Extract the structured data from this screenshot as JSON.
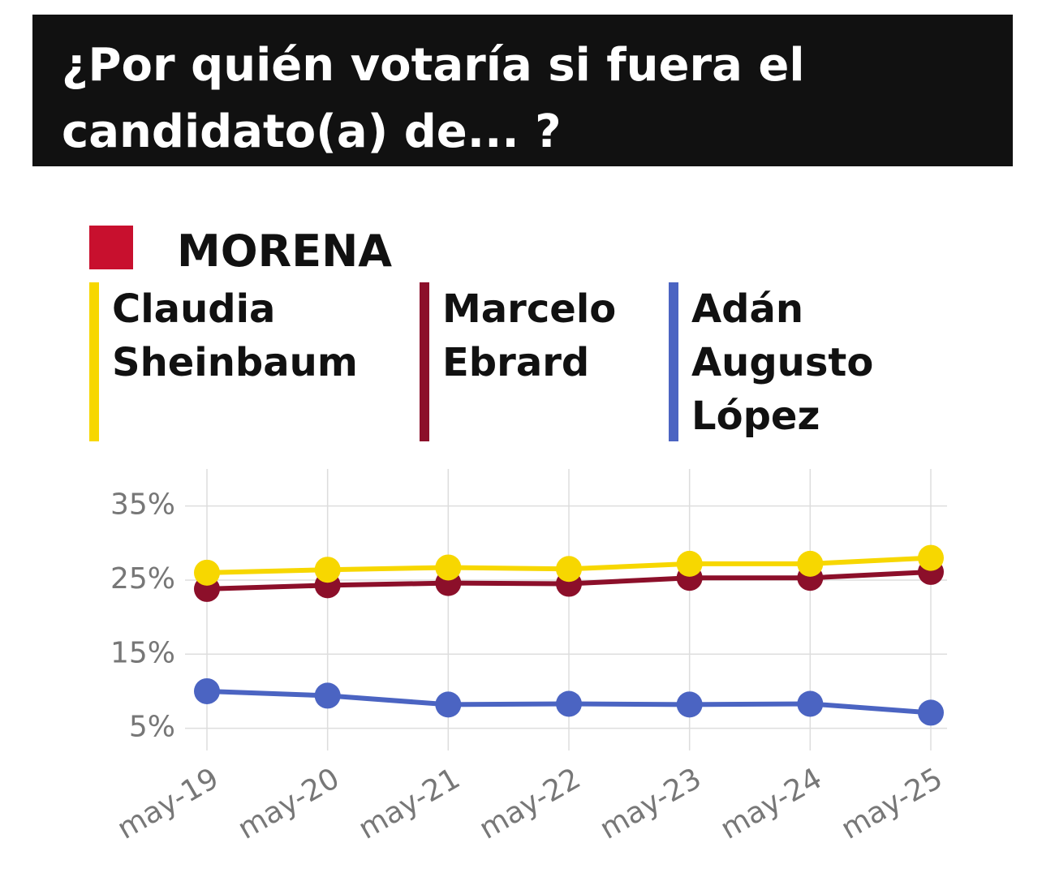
{
  "chart_data": {
    "type": "line",
    "title": "¿Por quién votaría si fuera el candidato(a) de... ?",
    "subtitle": "MORENA",
    "categories": [
      "may-19",
      "may-20",
      "may-21",
      "may-22",
      "may-23",
      "may-24",
      "may-25"
    ],
    "series": [
      {
        "name": "Claudia Sheinbaum",
        "color": "#f7d700",
        "values": [
          26,
          26.4,
          26.7,
          26.5,
          27.2,
          27.2,
          28
        ]
      },
      {
        "name": "Marcelo Ebrard",
        "color": "#8c0f2a",
        "values": [
          23.8,
          24.3,
          24.6,
          24.5,
          25.3,
          25.3,
          26.1
        ]
      },
      {
        "name": "Adán Augusto López",
        "color": "#4b64c2",
        "values": [
          10,
          9.4,
          8.2,
          8.3,
          8.2,
          8.3,
          7.1
        ]
      }
    ],
    "ylim": [
      2,
      40
    ],
    "yticks": [
      {
        "value": 5,
        "label": "5%"
      },
      {
        "value": 15,
        "label": "15%"
      },
      {
        "value": 25,
        "label": "25%"
      },
      {
        "value": 35,
        "label": "35%"
      }
    ],
    "grid": true
  }
}
